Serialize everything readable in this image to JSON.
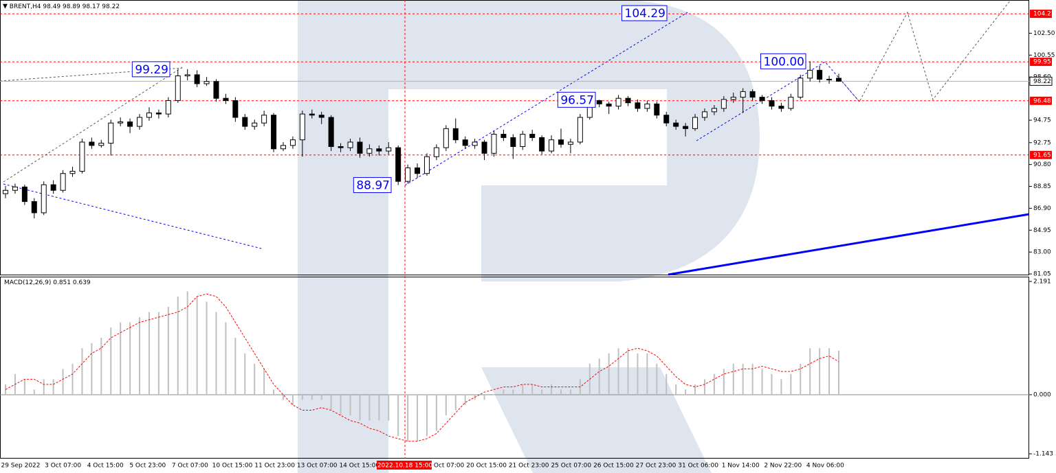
{
  "chart_data": {
    "type": "candlestick",
    "symbol": "BRENT,H4",
    "last_bar": [
      98.49,
      98.89,
      98.17,
      98.22
    ],
    "ohlc": [
      [
        88.2,
        88.9,
        87.8,
        88.5
      ],
      [
        88.5,
        89.1,
        88.2,
        88.8
      ],
      [
        88.8,
        89.0,
        87.2,
        87.5
      ],
      [
        87.5,
        87.8,
        86.0,
        86.5
      ],
      [
        86.5,
        89.3,
        86.3,
        89.0
      ],
      [
        89.0,
        89.4,
        88.2,
        88.5
      ],
      [
        88.5,
        90.3,
        88.3,
        90.0
      ],
      [
        90.0,
        90.6,
        89.7,
        90.2
      ],
      [
        90.2,
        93.1,
        90.0,
        92.8
      ],
      [
        92.8,
        93.2,
        92.2,
        92.5
      ],
      [
        92.5,
        93.0,
        92.3,
        92.7
      ],
      [
        92.7,
        94.8,
        91.6,
        94.5
      ],
      [
        94.5,
        95.0,
        94.2,
        94.6
      ],
      [
        94.6,
        94.9,
        93.6,
        94.2
      ],
      [
        94.2,
        95.3,
        93.9,
        95.0
      ],
      [
        95.0,
        95.9,
        94.7,
        95.4
      ],
      [
        95.4,
        95.7,
        94.9,
        95.3
      ],
      [
        95.3,
        96.8,
        95.0,
        96.5
      ],
      [
        96.5,
        99.29,
        96.3,
        98.7
      ],
      [
        98.7,
        99.3,
        98.3,
        98.8
      ],
      [
        98.8,
        99.2,
        97.7,
        98.0
      ],
      [
        98.0,
        98.6,
        97.8,
        98.2
      ],
      [
        98.2,
        98.4,
        96.4,
        96.7
      ],
      [
        96.7,
        97.1,
        96.2,
        96.5
      ],
      [
        96.5,
        96.8,
        94.6,
        95.0
      ],
      [
        95.0,
        95.3,
        93.9,
        94.2
      ],
      [
        94.2,
        94.8,
        93.9,
        94.5
      ],
      [
        94.5,
        95.6,
        94.2,
        95.2
      ],
      [
        95.2,
        95.4,
        91.9,
        92.2
      ],
      [
        92.2,
        92.8,
        92.0,
        92.5
      ],
      [
        92.5,
        93.3,
        92.2,
        93.0
      ],
      [
        93.0,
        95.6,
        91.5,
        95.3
      ],
      [
        95.3,
        95.7,
        94.9,
        95.2
      ],
      [
        95.2,
        95.5,
        94.4,
        95.0
      ],
      [
        95.0,
        95.2,
        92.0,
        92.4
      ],
      [
        92.4,
        92.7,
        91.9,
        92.3
      ],
      [
        92.3,
        93.1,
        92.0,
        92.8
      ],
      [
        92.8,
        93.2,
        91.4,
        91.8
      ],
      [
        91.8,
        92.6,
        91.5,
        92.2
      ],
      [
        92.2,
        92.5,
        91.6,
        92.0
      ],
      [
        92.0,
        92.8,
        91.7,
        92.3
      ],
      [
        92.3,
        92.5,
        88.97,
        89.3
      ],
      [
        89.3,
        90.8,
        89.1,
        90.5
      ],
      [
        90.5,
        90.9,
        89.6,
        90.0
      ],
      [
        90.0,
        91.8,
        89.8,
        91.5
      ],
      [
        91.5,
        92.6,
        91.2,
        92.3
      ],
      [
        92.3,
        94.3,
        92.0,
        94.0
      ],
      [
        94.0,
        94.9,
        92.7,
        93.0
      ],
      [
        93.0,
        93.3,
        92.2,
        92.5
      ],
      [
        92.5,
        93.1,
        92.2,
        92.8
      ],
      [
        92.8,
        93.0,
        91.2,
        91.8
      ],
      [
        91.8,
        93.8,
        91.5,
        93.5
      ],
      [
        93.5,
        93.9,
        92.9,
        93.2
      ],
      [
        93.2,
        93.5,
        91.3,
        92.4
      ],
      [
        92.4,
        93.8,
        92.1,
        93.5
      ],
      [
        93.5,
        93.9,
        92.9,
        93.2
      ],
      [
        93.2,
        93.4,
        91.7,
        92.0
      ],
      [
        92.0,
        93.4,
        91.8,
        93.0
      ],
      [
        93.0,
        94.0,
        92.3,
        92.6
      ],
      [
        92.6,
        93.1,
        91.8,
        92.8
      ],
      [
        92.8,
        95.3,
        92.6,
        95.0
      ],
      [
        95.0,
        96.8,
        94.8,
        96.5
      ],
      [
        96.5,
        96.57,
        95.9,
        96.2
      ],
      [
        96.2,
        96.4,
        95.3,
        96.0
      ],
      [
        96.0,
        97.0,
        95.7,
        96.7
      ],
      [
        96.7,
        96.9,
        96.0,
        96.3
      ],
      [
        96.3,
        96.6,
        95.5,
        95.8
      ],
      [
        95.8,
        96.5,
        95.5,
        96.2
      ],
      [
        96.2,
        96.4,
        94.9,
        95.2
      ],
      [
        95.2,
        95.5,
        94.2,
        94.5
      ],
      [
        94.5,
        94.8,
        93.9,
        94.2
      ],
      [
        94.2,
        94.5,
        93.3,
        94.0
      ],
      [
        94.0,
        95.3,
        93.8,
        95.0
      ],
      [
        95.0,
        95.8,
        94.7,
        95.5
      ],
      [
        95.5,
        96.1,
        95.2,
        95.8
      ],
      [
        95.8,
        96.9,
        95.5,
        96.6
      ],
      [
        96.6,
        97.2,
        96.3,
        96.8
      ],
      [
        96.8,
        97.6,
        95.4,
        97.3
      ],
      [
        97.3,
        97.5,
        96.5,
        96.8
      ],
      [
        96.8,
        97.0,
        96.2,
        96.5
      ],
      [
        96.5,
        96.8,
        95.7,
        96.0
      ],
      [
        96.0,
        96.3,
        95.5,
        95.8
      ],
      [
        95.8,
        97.1,
        95.6,
        96.8
      ],
      [
        96.8,
        98.8,
        96.6,
        98.5
      ],
      [
        98.5,
        100.0,
        98.2,
        99.2
      ],
      [
        99.2,
        99.6,
        98.1,
        98.4
      ],
      [
        98.4,
        98.7,
        98.0,
        98.4
      ],
      [
        98.49,
        98.89,
        98.17,
        98.22
      ]
    ],
    "ylim": [
      80.93,
      105.46
    ],
    "yticks": [
      {
        "value": 102.5,
        "label": "102.50"
      },
      {
        "value": 100.55,
        "label": "100.55"
      },
      {
        "value": 98.6,
        "label": "98.60"
      },
      {
        "value": 94.75,
        "label": "94.75"
      },
      {
        "value": 92.75,
        "label": "92.75"
      },
      {
        "value": 90.8,
        "label": "90.80"
      },
      {
        "value": 88.85,
        "label": "88.85"
      },
      {
        "value": 86.9,
        "label": "86.90"
      },
      {
        "value": 84.95,
        "label": "84.95"
      },
      {
        "value": 83,
        "label": "83.00"
      },
      {
        "value": 81.05,
        "label": "81.05"
      }
    ],
    "levels": [
      104.23,
      99.95,
      96.48,
      91.65
    ],
    "current_price": 98.22,
    "price_labels": [
      99.29,
      104.29,
      {
        "value": 100,
        "label": "100.00"
      },
      96.57,
      88.97
    ],
    "time_labels": [
      "29 Sep 2022",
      "3 Oct 07:00",
      "4 Oct 15:00",
      "5 Oct 23:00",
      "7 Oct 07:00",
      "10 Oct 15:00",
      "11 Oct 23:00",
      "13 Oct 07:00",
      "14 Oct 15:00",
      "Oct 07:00",
      "20 Oct 15:00",
      "21 Oct 23:00",
      "25 Oct 07:00",
      "26 Oct 15:00",
      "27 Oct 23:00",
      "31 Oct 06:00",
      "1 Nov 14:00",
      "2 Nov 22:00",
      "4 Nov 06:00"
    ],
    "crosshair_time": "2022.10.18 15:00",
    "indicator": "MACD(12,26,9)",
    "macd_values": [
      0.851,
      0.639
    ],
    "macd_ylim": [
      -1.143,
      2.191
    ],
    "macd_yticks": [
      2.191,
      {
        "value": 0,
        "label": "0.000"
      },
      -1.143
    ],
    "macd_hist": [
      0.2,
      0.4,
      0.3,
      0.1,
      0.3,
      0.3,
      0.5,
      0.6,
      0.9,
      1.0,
      1.1,
      1.3,
      1.4,
      1.4,
      1.5,
      1.6,
      1.6,
      1.7,
      1.9,
      2.0,
      1.9,
      1.8,
      1.6,
      1.4,
      1.1,
      0.8,
      0.6,
      0.5,
      0.1,
      -0.1,
      -0.2,
      -0.1,
      -0.1,
      -0.1,
      -0.3,
      -0.4,
      -0.4,
      -0.5,
      -0.5,
      -0.5,
      -0.5,
      -0.8,
      -0.9,
      -0.9,
      -0.8,
      -0.7,
      -0.4,
      -0.3,
      -0.2,
      -0.1,
      -0.1,
      0.0,
      0.1,
      0.1,
      0.2,
      0.2,
      0.1,
      0.2,
      0.1,
      0.1,
      0.3,
      0.6,
      0.7,
      0.8,
      0.9,
      0.9,
      0.8,
      0.8,
      0.6,
      0.4,
      0.2,
      0.1,
      0.2,
      0.3,
      0.4,
      0.5,
      0.6,
      0.6,
      0.6,
      0.5,
      0.4,
      0.3,
      0.4,
      0.6,
      0.9,
      0.9,
      0.9,
      0.851
    ],
    "macd_signal": [
      0.1,
      0.2,
      0.3,
      0.3,
      0.2,
      0.2,
      0.3,
      0.4,
      0.6,
      0.8,
      0.9,
      1.1,
      1.2,
      1.3,
      1.4,
      1.45,
      1.5,
      1.55,
      1.6,
      1.7,
      1.9,
      1.95,
      1.9,
      1.7,
      1.4,
      1.1,
      0.8,
      0.5,
      0.2,
      0.0,
      -0.2,
      -0.3,
      -0.3,
      -0.25,
      -0.3,
      -0.4,
      -0.5,
      -0.55,
      -0.65,
      -0.7,
      -0.8,
      -0.85,
      -0.9,
      -0.9,
      -0.85,
      -0.75,
      -0.55,
      -0.35,
      -0.15,
      -0.05,
      0.05,
      0.1,
      0.15,
      0.15,
      0.2,
      0.2,
      0.15,
      0.15,
      0.15,
      0.15,
      0.15,
      0.3,
      0.45,
      0.55,
      0.7,
      0.85,
      0.9,
      0.85,
      0.75,
      0.55,
      0.35,
      0.2,
      0.15,
      0.2,
      0.3,
      0.4,
      0.45,
      0.5,
      0.5,
      0.55,
      0.5,
      0.45,
      0.45,
      0.5,
      0.6,
      0.7,
      0.75,
      0.639
    ],
    "level_color": "#ff0000",
    "label_color": "#0000ff",
    "hist_color": "#c0c0c0",
    "signal_color": "#ff0000"
  }
}
